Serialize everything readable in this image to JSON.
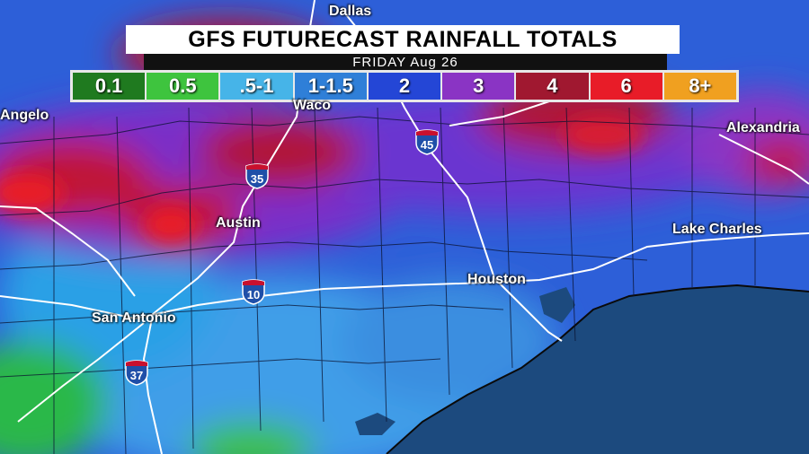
{
  "title": "GFS FUTURECAST RAINFALL TOTALS",
  "subtitle": "FRIDAY Aug 26",
  "legend": [
    {
      "label": "0.1",
      "color": "#1f7a1f"
    },
    {
      "label": "0.5",
      "color": "#3ec43e"
    },
    {
      "label": ".5-1",
      "color": "#46b4e8"
    },
    {
      "label": "1-1.5",
      "color": "#2f7fd8"
    },
    {
      "label": "2",
      "color": "#2446d6"
    },
    {
      "label": "3",
      "color": "#8a34c4"
    },
    {
      "label": "4",
      "color": "#a01830"
    },
    {
      "label": "6",
      "color": "#e81c28"
    },
    {
      "label": "8+",
      "color": "#f0a020"
    }
  ],
  "cities": {
    "dallas": "Dallas",
    "waco": "Waco",
    "angelo": "Angelo",
    "austin": "Austin",
    "san_antonio": "San Antonio",
    "houston": "Houston",
    "lake_charles": "Lake Charles",
    "alexandria": "Alexandria"
  },
  "highways": {
    "i35": "35",
    "i45": "45",
    "i10": "10",
    "i37": "37"
  }
}
